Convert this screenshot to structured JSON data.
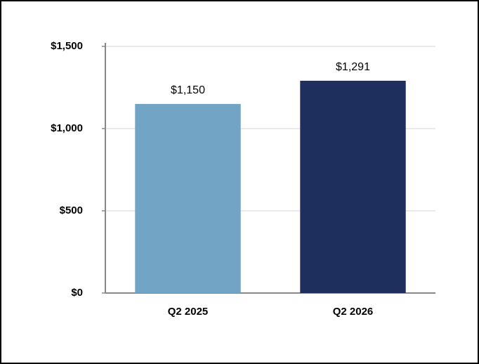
{
  "chart_data": {
    "type": "bar",
    "categories": [
      "Q2 2025",
      "Q2 2026"
    ],
    "values": [
      1150,
      1291
    ],
    "value_labels": [
      "$1,150",
      "$1,291"
    ],
    "colors": [
      "#72a4c5",
      "#1e2f5e"
    ],
    "ylim": [
      0,
      1500
    ],
    "yticks": [
      {
        "value": 0,
        "label": "$0"
      },
      {
        "value": 500,
        "label": "$500"
      },
      {
        "value": 1000,
        "label": "$1,000"
      },
      {
        "value": 1500,
        "label": "$1,500"
      }
    ],
    "grid": true
  }
}
